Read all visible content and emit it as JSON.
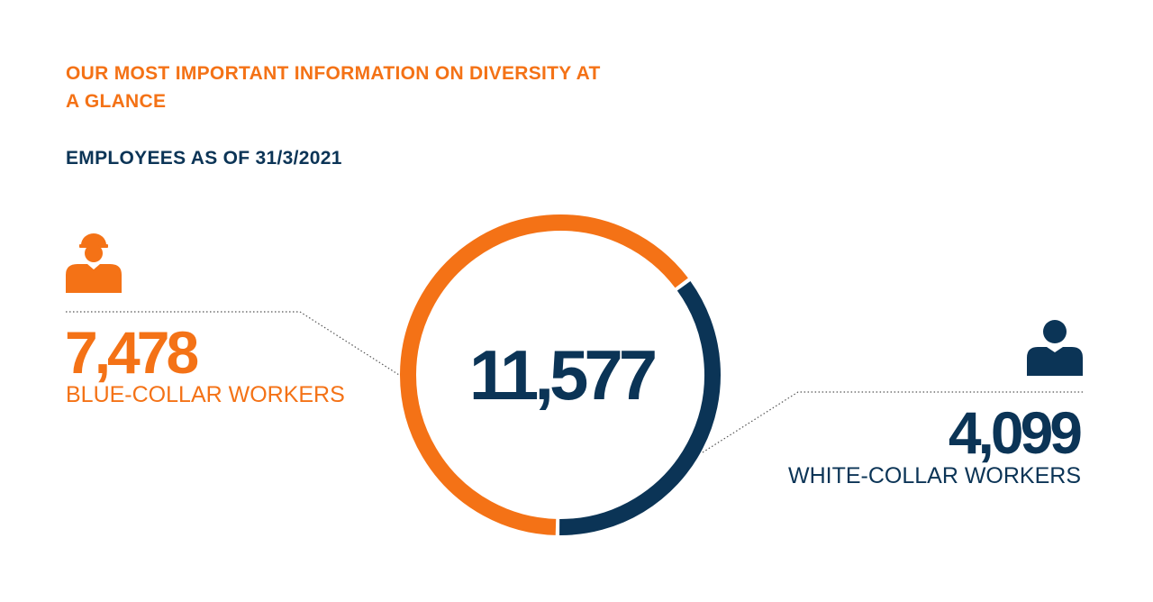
{
  "header": {
    "title": "OUR MOST IMPORTANT INFORMATION ON DIVERSITY AT A GLANCE",
    "subtitle": "EMPLOYEES AS OF 31/3/2021"
  },
  "colors": {
    "orange": "#F47216",
    "navy": "#0B3456"
  },
  "chart_data": {
    "type": "pie",
    "style": "donut",
    "title": "EMPLOYEES AS OF 31/3/2021",
    "total": {
      "value": 11577,
      "label": "11,577"
    },
    "series": [
      {
        "name": "BLUE-COLLAR WORKERS",
        "value": 7478,
        "label": "7,478",
        "color": "#F47216",
        "icon": "construction-worker-icon"
      },
      {
        "name": "WHITE-COLLAR WORKERS",
        "value": 4099,
        "label": "4,099",
        "color": "#0B3456",
        "icon": "office-worker-icon"
      }
    ]
  }
}
